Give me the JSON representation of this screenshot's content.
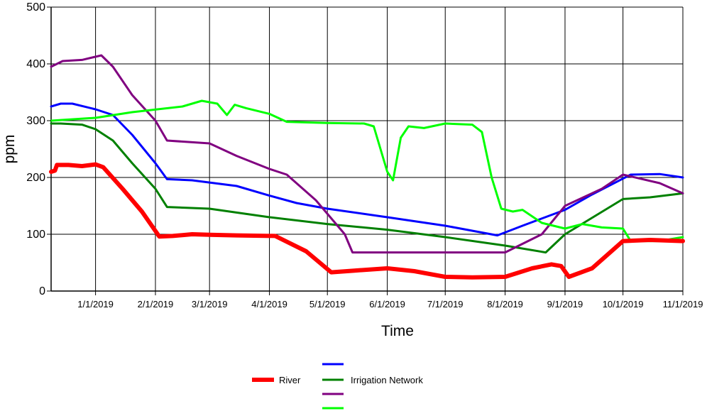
{
  "chart_data": {
    "type": "line",
    "xlabel": "Time",
    "ylabel": "ppm",
    "ylim": [
      0,
      500
    ],
    "xlim": [
      "2018-12-09",
      "2019-11-01"
    ],
    "yticks": [
      "0",
      "100",
      "200",
      "300",
      "400",
      "500"
    ],
    "xticks": [
      {
        "date": "2019-01-01",
        "label": "1/1/2019"
      },
      {
        "date": "2019-02-01",
        "label": "2/1/2019"
      },
      {
        "date": "2019-03-01",
        "label": "3/1/2019"
      },
      {
        "date": "2019-04-01",
        "label": "4/1/2019"
      },
      {
        "date": "2019-05-01",
        "label": "5/1/2019"
      },
      {
        "date": "2019-06-01",
        "label": "6/1/2019"
      },
      {
        "date": "2019-07-01",
        "label": "7/1/2019"
      },
      {
        "date": "2019-08-01",
        "label": "8/1/2019"
      },
      {
        "date": "2019-09-01",
        "label": "9/1/2019"
      },
      {
        "date": "2019-10-01",
        "label": "10/1/2019"
      },
      {
        "date": "2019-11-01",
        "label": "11/1/2019"
      }
    ],
    "grid": true,
    "legend_position": "bottom",
    "series": [
      {
        "name": "River",
        "color": "#ff0000",
        "points": [
          [
            "2018-12-09",
            210
          ],
          [
            "2018-12-11",
            212
          ],
          [
            "2018-12-12",
            222
          ],
          [
            "2018-12-18",
            222
          ],
          [
            "2018-12-25",
            220
          ],
          [
            "2019-01-01",
            223
          ],
          [
            "2019-01-05",
            218
          ],
          [
            "2019-01-15",
            180
          ],
          [
            "2019-01-25",
            140
          ],
          [
            "2019-02-03",
            96
          ],
          [
            "2019-02-10",
            97
          ],
          [
            "2019-02-20",
            100
          ],
          [
            "2019-03-01",
            99
          ],
          [
            "2019-03-15",
            98
          ],
          [
            "2019-04-04",
            97
          ],
          [
            "2019-04-20",
            70
          ],
          [
            "2019-05-03",
            33
          ],
          [
            "2019-05-15",
            36
          ],
          [
            "2019-06-01",
            40
          ],
          [
            "2019-06-15",
            35
          ],
          [
            "2019-07-01",
            25
          ],
          [
            "2019-07-15",
            24
          ],
          [
            "2019-08-01",
            25
          ],
          [
            "2019-08-15",
            40
          ],
          [
            "2019-08-25",
            47
          ],
          [
            "2019-08-30",
            44
          ],
          [
            "2019-09-03",
            25
          ],
          [
            "2019-09-15",
            40
          ],
          [
            "2019-10-01",
            88
          ],
          [
            "2019-10-15",
            90
          ],
          [
            "2019-11-01",
            88
          ]
        ]
      },
      {
        "color": "#0000ff",
        "points": [
          [
            "2018-12-09",
            325
          ],
          [
            "2018-12-14",
            330
          ],
          [
            "2018-12-20",
            330
          ],
          [
            "2019-01-01",
            320
          ],
          [
            "2019-01-10",
            310
          ],
          [
            "2019-01-20",
            275
          ],
          [
            "2019-02-01",
            225
          ],
          [
            "2019-02-07",
            197
          ],
          [
            "2019-02-20",
            195
          ],
          [
            "2019-03-15",
            185
          ],
          [
            "2019-04-01",
            168
          ],
          [
            "2019-04-15",
            155
          ],
          [
            "2019-05-01",
            145
          ],
          [
            "2019-06-01",
            130
          ],
          [
            "2019-07-01",
            115
          ],
          [
            "2019-07-28",
            98
          ],
          [
            "2019-08-10",
            115
          ],
          [
            "2019-09-01",
            143
          ],
          [
            "2019-09-15",
            170
          ],
          [
            "2019-10-05",
            205
          ],
          [
            "2019-10-20",
            206
          ],
          [
            "2019-11-01",
            200
          ]
        ]
      },
      {
        "name": "Irrigation Network",
        "color": "#008000",
        "points": [
          [
            "2018-12-09",
            295
          ],
          [
            "2018-12-14",
            295
          ],
          [
            "2018-12-25",
            293
          ],
          [
            "2019-01-01",
            285
          ],
          [
            "2019-01-10",
            265
          ],
          [
            "2019-01-20",
            225
          ],
          [
            "2019-02-01",
            180
          ],
          [
            "2019-02-07",
            148
          ],
          [
            "2019-03-01",
            145
          ],
          [
            "2019-04-01",
            130
          ],
          [
            "2019-05-01",
            118
          ],
          [
            "2019-06-01",
            108
          ],
          [
            "2019-07-01",
            95
          ],
          [
            "2019-08-01",
            80
          ],
          [
            "2019-08-22",
            68
          ],
          [
            "2019-09-01",
            100
          ],
          [
            "2019-10-01",
            162
          ],
          [
            "2019-10-15",
            165
          ],
          [
            "2019-11-01",
            172
          ]
        ]
      },
      {
        "color": "#800080",
        "points": [
          [
            "2018-12-09",
            395
          ],
          [
            "2018-12-15",
            405
          ],
          [
            "2018-12-25",
            407
          ],
          [
            "2019-01-04",
            415
          ],
          [
            "2019-01-10",
            395
          ],
          [
            "2019-01-20",
            345
          ],
          [
            "2019-02-01",
            300
          ],
          [
            "2019-02-07",
            265
          ],
          [
            "2019-03-01",
            260
          ],
          [
            "2019-03-15",
            238
          ],
          [
            "2019-04-01",
            215
          ],
          [
            "2019-04-10",
            205
          ],
          [
            "2019-04-25",
            160
          ],
          [
            "2019-05-10",
            100
          ],
          [
            "2019-05-14",
            68
          ],
          [
            "2019-06-01",
            68
          ],
          [
            "2019-07-01",
            68
          ],
          [
            "2019-08-01",
            68
          ],
          [
            "2019-08-20",
            100
          ],
          [
            "2019-09-01",
            150
          ],
          [
            "2019-09-20",
            180
          ],
          [
            "2019-10-01",
            205
          ],
          [
            "2019-10-20",
            190
          ],
          [
            "2019-11-01",
            172
          ]
        ]
      },
      {
        "color": "#00ff00",
        "points": [
          [
            "2018-12-09",
            300
          ],
          [
            "2019-01-01",
            305
          ],
          [
            "2019-01-20",
            315
          ],
          [
            "2019-02-15",
            325
          ],
          [
            "2019-02-25",
            335
          ],
          [
            "2019-03-05",
            330
          ],
          [
            "2019-03-10",
            310
          ],
          [
            "2019-03-14",
            328
          ],
          [
            "2019-03-20",
            322
          ],
          [
            "2019-04-01",
            312
          ],
          [
            "2019-04-10",
            298
          ],
          [
            "2019-05-01",
            296
          ],
          [
            "2019-05-20",
            295
          ],
          [
            "2019-05-25",
            290
          ],
          [
            "2019-06-01",
            210
          ],
          [
            "2019-06-04",
            195
          ],
          [
            "2019-06-08",
            270
          ],
          [
            "2019-06-12",
            290
          ],
          [
            "2019-06-20",
            287
          ],
          [
            "2019-07-01",
            295
          ],
          [
            "2019-07-15",
            293
          ],
          [
            "2019-07-20",
            280
          ],
          [
            "2019-07-25",
            200
          ],
          [
            "2019-07-30",
            145
          ],
          [
            "2019-08-05",
            140
          ],
          [
            "2019-08-10",
            143
          ],
          [
            "2019-08-20",
            120
          ],
          [
            "2019-09-01",
            110
          ],
          [
            "2019-09-10",
            118
          ],
          [
            "2019-09-20",
            112
          ],
          [
            "2019-10-01",
            110
          ],
          [
            "2019-10-05",
            88
          ],
          [
            "2019-10-20",
            88
          ],
          [
            "2019-11-01",
            95
          ]
        ]
      }
    ]
  }
}
